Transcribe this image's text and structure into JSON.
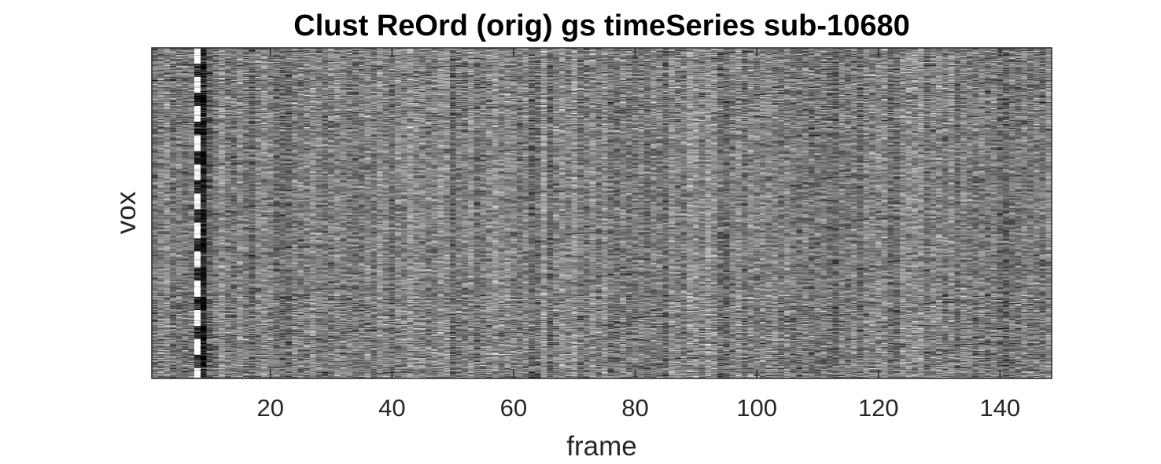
{
  "chart_data": {
    "type": "heatmap",
    "title": "Clust ReOrd (orig)  gs timeSeries sub-10680",
    "xlabel": "frame",
    "ylabel": "vox",
    "xlim": [
      0.5,
      148.5
    ],
    "x_ticks": [
      20,
      40,
      60,
      80,
      100,
      120,
      140
    ],
    "x_tick_labels": [
      "20",
      "40",
      "60",
      "80",
      "100",
      "120",
      "140"
    ],
    "y_ticks": [],
    "n_frames": 148,
    "colormap": "gray",
    "grid": false,
    "legend": "none"
  },
  "colors": {
    "background": "#ffffff",
    "axis": "#262626",
    "title": "#000000"
  }
}
